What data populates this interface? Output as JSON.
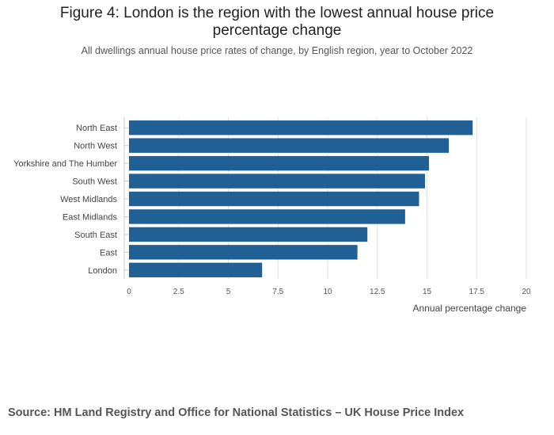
{
  "chart_data": {
    "type": "bar",
    "orientation": "horizontal",
    "title_line1": "Figure 4: London is the region with the lowest annual house price",
    "title_line2": "percentage change",
    "subtitle": "All dwellings annual house price rates of change, by English region, year to October 2022",
    "categories": [
      "North East",
      "North West",
      "Yorkshire and The Humber",
      "South West",
      "West Midlands",
      "East Midlands",
      "South East",
      "East",
      "London"
    ],
    "values": [
      17.3,
      16.1,
      15.1,
      14.9,
      14.6,
      13.9,
      12.0,
      11.5,
      6.7
    ],
    "xlim": [
      0,
      20
    ],
    "xticks": [
      "0",
      "2.5",
      "5",
      "7.5",
      "10",
      "12.5",
      "15",
      "17.5",
      "20"
    ],
    "xlabel": "Annual percentage change",
    "ylabel": "",
    "grid": true,
    "bar_color": "#206095"
  },
  "source": "Source: HM Land Registry and Office for National Statistics – UK House Price Index"
}
